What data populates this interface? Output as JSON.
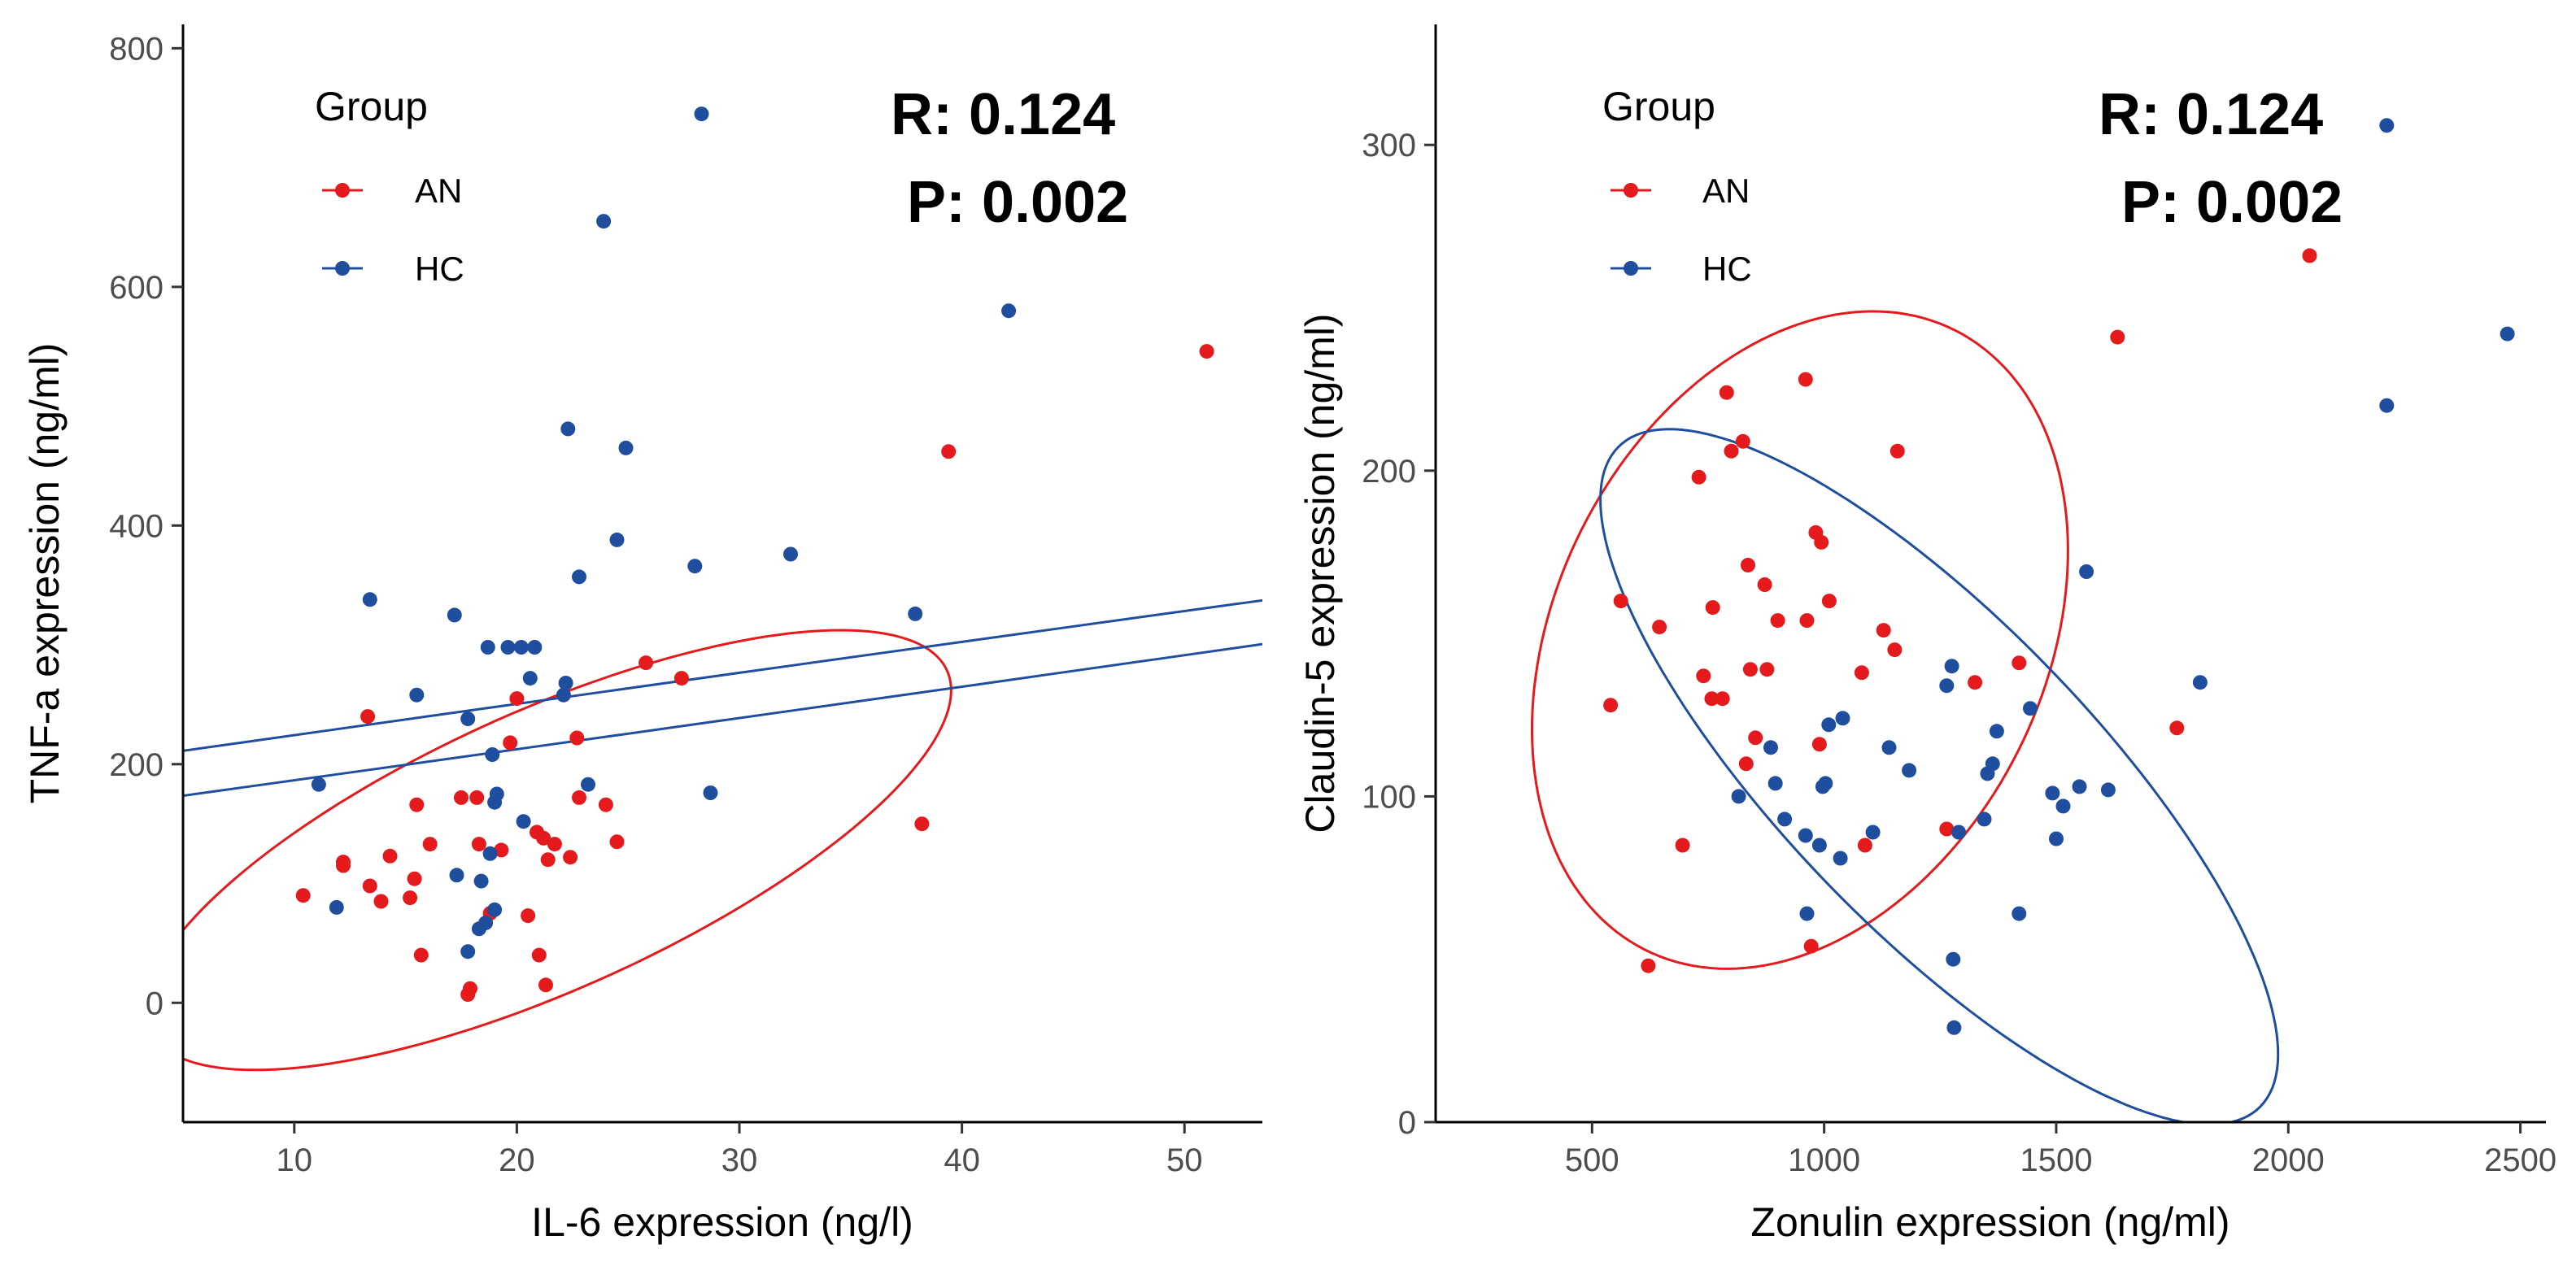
{
  "chart_data": [
    {
      "type": "scatter",
      "title": "",
      "xlabel": "IL-6 expression (ng/l)",
      "ylabel": "TNF-a expression (ng/ml)",
      "xlim": [
        5,
        53.5
      ],
      "ylim": [
        -100,
        820
      ],
      "xticks": [
        "10",
        "20",
        "30",
        "40",
        "50"
      ],
      "yticks": [
        "0",
        "200",
        "400",
        "600",
        "800"
      ],
      "grid": false,
      "legend": {
        "title": "Group",
        "position": "top-left",
        "entries": [
          "AN",
          "HC"
        ]
      },
      "annotations": [
        "R: 0.124",
        "P: 0.002"
      ],
      "series": [
        {
          "name": "AN",
          "color": "#e41a1c",
          "points": [
            [
              10.4,
              90
            ],
            [
              12.2,
              118
            ],
            [
              12.2,
              115
            ],
            [
              13.3,
              240
            ],
            [
              13.4,
              98
            ],
            [
              13.9,
              85
            ],
            [
              14.3,
              123
            ],
            [
              15.2,
              88
            ],
            [
              15.4,
              104
            ],
            [
              15.5,
              166
            ],
            [
              15.7,
              40
            ],
            [
              16.1,
              133
            ],
            [
              17.5,
              172
            ],
            [
              17.8,
              7
            ],
            [
              17.9,
              12
            ],
            [
              18.2,
              172
            ],
            [
              18.3,
              133
            ],
            [
              18.8,
              75
            ],
            [
              19.3,
              128
            ],
            [
              19.7,
              218
            ],
            [
              20.0,
              255
            ],
            [
              20.5,
              73
            ],
            [
              20.9,
              143
            ],
            [
              21.0,
              40
            ],
            [
              21.2,
              138
            ],
            [
              21.3,
              15
            ],
            [
              21.4,
              120
            ],
            [
              21.7,
              133
            ],
            [
              22.4,
              122
            ],
            [
              22.7,
              222
            ],
            [
              22.8,
              172
            ],
            [
              24.0,
              166
            ],
            [
              24.5,
              135
            ],
            [
              25.8,
              285
            ],
            [
              27.4,
              272
            ],
            [
              38.2,
              150
            ],
            [
              39.4,
              462
            ],
            [
              51.0,
              546
            ]
          ]
        },
        {
          "name": "HC",
          "color": "#1f4e9e",
          "points": [
            [
              11.1,
              183
            ],
            [
              11.9,
              80
            ],
            [
              13.4,
              338
            ],
            [
              15.5,
              258
            ],
            [
              17.2,
              325
            ],
            [
              17.3,
              107
            ],
            [
              17.8,
              43
            ],
            [
              17.8,
              238
            ],
            [
              18.3,
              62
            ],
            [
              18.4,
              102
            ],
            [
              18.6,
              67
            ],
            [
              18.7,
              298
            ],
            [
              18.8,
              125
            ],
            [
              18.9,
              208
            ],
            [
              19.0,
              78
            ],
            [
              19.0,
              168
            ],
            [
              19.1,
              175
            ],
            [
              19.6,
              298
            ],
            [
              20.2,
              298
            ],
            [
              20.3,
              152
            ],
            [
              20.6,
              272
            ],
            [
              20.8,
              298
            ],
            [
              22.1,
              258
            ],
            [
              22.2,
              268
            ],
            [
              22.3,
              481
            ],
            [
              22.8,
              357
            ],
            [
              23.2,
              183
            ],
            [
              23.9,
              655
            ],
            [
              24.5,
              388
            ],
            [
              24.9,
              465
            ],
            [
              28.0,
              366
            ],
            [
              28.3,
              745
            ],
            [
              28.7,
              176
            ],
            [
              32.3,
              376
            ],
            [
              37.9,
              326
            ],
            [
              42.1,
              580
            ]
          ]
        }
      ],
      "ellipses": [
        {
          "name": "AN",
          "color": "#e41a1c",
          "center": [
            21.4,
            128
          ],
          "rx": 12.43,
          "ry": 184.75,
          "rotation_deg": -4.1
        },
        {
          "name": "HC",
          "color": "#1f4e9e",
          "center": [
            22.1,
            237
          ],
          "rx": 6.79,
          "ry": 331.17,
          "rotation_deg": -20.9,
          "clip_to_panel": true
        }
      ]
    },
    {
      "type": "scatter",
      "title": "",
      "xlabel": "Zonulin expression (ng/ml)",
      "ylabel": "Claudin-5 expression (ng/ml)",
      "xlim": [
        163,
        2555
      ],
      "ylim": [
        0,
        337
      ],
      "xticks": [
        "500",
        "1000",
        "1500",
        "2000",
        "2500"
      ],
      "yticks": [
        "0",
        "100",
        "200",
        "300"
      ],
      "grid": false,
      "legend": {
        "title": "Group",
        "position": "top-left",
        "entries": [
          "AN",
          "HC"
        ]
      },
      "annotations": [
        "R: 0.124",
        "P: 0.002"
      ],
      "series": [
        {
          "name": "AN",
          "color": "#e41a1c",
          "points": [
            [
              540,
              128
            ],
            [
              562,
              160
            ],
            [
              621,
              48
            ],
            [
              645,
              152
            ],
            [
              695,
              85
            ],
            [
              730,
              198
            ],
            [
              740,
              137
            ],
            [
              758,
              130
            ],
            [
              760,
              158
            ],
            [
              781,
              130
            ],
            [
              790,
              224
            ],
            [
              800,
              206
            ],
            [
              825,
              209
            ],
            [
              832,
              110
            ],
            [
              836,
              171
            ],
            [
              841,
              139
            ],
            [
              852,
              118
            ],
            [
              872,
              165
            ],
            [
              877,
              139
            ],
            [
              900,
              154
            ],
            [
              960,
              228
            ],
            [
              963,
              154
            ],
            [
              972,
              54
            ],
            [
              982,
              181
            ],
            [
              990,
              116
            ],
            [
              994,
              178
            ],
            [
              1011,
              160
            ],
            [
              1081,
              138
            ],
            [
              1088,
              85
            ],
            [
              1128,
              151
            ],
            [
              1152,
              145
            ],
            [
              1158,
              206
            ],
            [
              1264,
              90
            ],
            [
              1325,
              135
            ],
            [
              1420,
              141
            ],
            [
              1632,
              241
            ],
            [
              1760,
              121
            ],
            [
              2046,
              266
            ]
          ]
        },
        {
          "name": "HC",
          "color": "#1f4e9e",
          "points": [
            [
              816,
              100
            ],
            [
              885,
              115
            ],
            [
              895,
              104
            ],
            [
              915,
              93
            ],
            [
              960,
              88
            ],
            [
              963,
              64
            ],
            [
              990,
              85
            ],
            [
              997,
              103
            ],
            [
              1003,
              104
            ],
            [
              1010,
              122
            ],
            [
              1035,
              81
            ],
            [
              1040,
              124
            ],
            [
              1105,
              89
            ],
            [
              1140,
              115
            ],
            [
              1183,
              108
            ],
            [
              1264,
              134
            ],
            [
              1275,
              140
            ],
            [
              1278,
              50
            ],
            [
              1280,
              29
            ],
            [
              1290,
              89
            ],
            [
              1345,
              93
            ],
            [
              1352,
              107
            ],
            [
              1363,
              110
            ],
            [
              1372,
              120
            ],
            [
              1420,
              64
            ],
            [
              1444,
              127
            ],
            [
              1492,
              101
            ],
            [
              1500,
              87
            ],
            [
              1515,
              97
            ],
            [
              1550,
              103
            ],
            [
              1565,
              169
            ],
            [
              1612,
              102
            ],
            [
              1810,
              135
            ],
            [
              2212,
              220
            ],
            [
              2212,
              306
            ],
            [
              2472,
              242
            ]
          ]
        }
      ],
      "ellipses": [
        {
          "name": "AN",
          "color": "#e41a1c",
          "center": [
            948,
            148
          ],
          "rx": 578,
          "ry": 97,
          "rotation_deg": 2.8
        },
        {
          "name": "HC",
          "color": "#1f4e9e",
          "center": [
            1248,
            106
          ],
          "rx": 735,
          "ry": 64,
          "rotation_deg": -6.7
        }
      ]
    }
  ]
}
